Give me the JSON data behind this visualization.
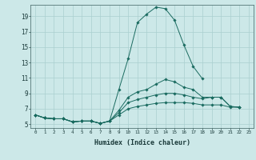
{
  "xlabel": "Humidex (Indice chaleur)",
  "ylabel": "",
  "bg_color": "#cce8e8",
  "grid_color": "#aacfcf",
  "line_color": "#1a6b60",
  "xlim": [
    -0.5,
    23.5
  ],
  "ylim": [
    4.5,
    20.5
  ],
  "xticks": [
    0,
    1,
    2,
    3,
    4,
    5,
    6,
    7,
    8,
    9,
    10,
    11,
    12,
    13,
    14,
    15,
    16,
    17,
    18,
    19,
    20,
    21,
    22,
    23
  ],
  "yticks": [
    5,
    7,
    9,
    11,
    13,
    15,
    17,
    19
  ],
  "line1_x": [
    0,
    1,
    2,
    3,
    4,
    5,
    6,
    7,
    8,
    9,
    10,
    11,
    12,
    13,
    14,
    15,
    16,
    17,
    18
  ],
  "line1_y": [
    6.2,
    5.8,
    5.7,
    5.7,
    5.3,
    5.4,
    5.4,
    5.1,
    5.4,
    9.5,
    13.5,
    18.2,
    19.3,
    20.2,
    20.0,
    18.5,
    15.3,
    12.5,
    10.9
  ],
  "line2_x": [
    0,
    1,
    2,
    3,
    4,
    5,
    6,
    7,
    8,
    9,
    10,
    11,
    12,
    13,
    14,
    15,
    16,
    17,
    18,
    19,
    20,
    21,
    22
  ],
  "line2_y": [
    6.2,
    5.8,
    5.7,
    5.7,
    5.3,
    5.4,
    5.4,
    5.1,
    5.4,
    6.8,
    8.5,
    9.2,
    9.5,
    10.2,
    10.8,
    10.5,
    9.8,
    9.5,
    8.5,
    8.5,
    8.5,
    7.3,
    7.2
  ],
  "line3_x": [
    0,
    1,
    2,
    3,
    4,
    5,
    6,
    7,
    8,
    9,
    10,
    11,
    12,
    13,
    14,
    15,
    16,
    17,
    18,
    19,
    20,
    21,
    22
  ],
  "line3_y": [
    6.2,
    5.8,
    5.7,
    5.7,
    5.3,
    5.4,
    5.4,
    5.1,
    5.4,
    6.5,
    7.8,
    8.2,
    8.5,
    8.8,
    9.0,
    9.0,
    8.8,
    8.5,
    8.3,
    8.5,
    8.5,
    7.3,
    7.2
  ],
  "line4_x": [
    0,
    1,
    2,
    3,
    4,
    5,
    6,
    7,
    8,
    9,
    10,
    11,
    12,
    13,
    14,
    15,
    16,
    17,
    18,
    19,
    20,
    21,
    22
  ],
  "line4_y": [
    6.2,
    5.8,
    5.7,
    5.7,
    5.3,
    5.4,
    5.4,
    5.1,
    5.4,
    6.2,
    7.0,
    7.3,
    7.5,
    7.7,
    7.8,
    7.8,
    7.8,
    7.7,
    7.5,
    7.5,
    7.5,
    7.2,
    7.2
  ]
}
